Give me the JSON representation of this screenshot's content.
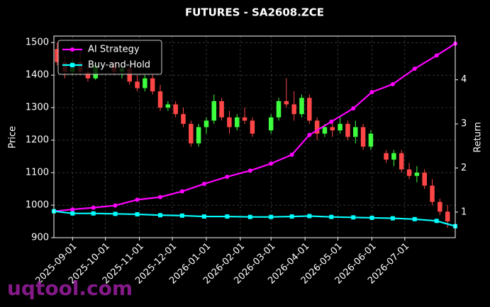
{
  "chart_data": {
    "type": "candlestick",
    "title": "FUTURES - SA2608.ZCE",
    "ylabel": "Price",
    "y2label": "Return",
    "watermark": "uqtool.com",
    "xlim": [
      "2025-08-15",
      "2026-08-16"
    ],
    "xticks": [
      "2025-09-01",
      "2025-10-01",
      "2025-11-01",
      "2025-12-01",
      "2026-01-01",
      "2026-02-01",
      "2026-03-01",
      "2026-04-01",
      "2026-05-01",
      "2026-06-01",
      "2026-07-01"
    ],
    "ylim": [
      900,
      1520
    ],
    "yticks": [
      900,
      1000,
      1100,
      1200,
      1300,
      1400,
      1500
    ],
    "y2lim": [
      0.42,
      4.99
    ],
    "y2ticks": [
      1,
      2,
      3,
      4
    ],
    "grid": true,
    "legend": "upper left",
    "up_color": "#3dff3d",
    "down_color": "#ff4646",
    "x": [
      "2025-08-18",
      "2025-08-25",
      "2025-09-01",
      "2025-09-08",
      "2025-09-15",
      "2025-09-22",
      "2025-10-09",
      "2025-10-16",
      "2025-10-23",
      "2025-10-30",
      "2025-11-06",
      "2025-11-13",
      "2025-11-20",
      "2025-11-27",
      "2025-12-04",
      "2025-12-11",
      "2025-12-18",
      "2025-12-25",
      "2026-01-01",
      "2026-01-08",
      "2026-01-15",
      "2026-01-22",
      "2026-01-29",
      "2026-02-05",
      "2026-02-12",
      "2026-03-01",
      "2026-03-08",
      "2026-03-15",
      "2026-03-22",
      "2026-03-29",
      "2026-04-05",
      "2026-04-12",
      "2026-04-19",
      "2026-04-26",
      "2026-05-03",
      "2026-05-10",
      "2026-05-17",
      "2026-05-24",
      "2026-05-31",
      "2026-06-14",
      "2026-06-21",
      "2026-06-28",
      "2026-07-05",
      "2026-07-12",
      "2026-07-19",
      "2026-07-26",
      "2026-08-02",
      "2026-08-09"
    ],
    "open": [
      1480,
      1440,
      1410,
      1440,
      1410,
      1390,
      1430,
      1410,
      1420,
      1380,
      1360,
      1390,
      1350,
      1300,
      1310,
      1280,
      1250,
      1190,
      1240,
      1260,
      1320,
      1270,
      1240,
      1270,
      1260,
      1230,
      1270,
      1320,
      1310,
      1280,
      1330,
      1260,
      1220,
      1240,
      1230,
      1250,
      1210,
      1240,
      1180,
      1160,
      1140,
      1160,
      1110,
      1090,
      1100,
      1060,
      1010,
      980
    ],
    "high": [
      1500,
      1460,
      1450,
      1470,
      1430,
      1440,
      1450,
      1440,
      1430,
      1400,
      1400,
      1400,
      1370,
      1320,
      1320,
      1300,
      1260,
      1250,
      1270,
      1340,
      1330,
      1290,
      1280,
      1300,
      1270,
      1280,
      1330,
      1390,
      1350,
      1340,
      1340,
      1270,
      1250,
      1260,
      1270,
      1260,
      1260,
      1250,
      1230,
      1170,
      1170,
      1170,
      1130,
      1120,
      1110,
      1080,
      1020,
      1000
    ],
    "low": [
      1430,
      1390,
      1400,
      1400,
      1380,
      1385,
      1400,
      1390,
      1370,
      1350,
      1350,
      1340,
      1290,
      1290,
      1270,
      1240,
      1180,
      1180,
      1220,
      1250,
      1260,
      1220,
      1230,
      1250,
      1210,
      1220,
      1260,
      1300,
      1260,
      1270,
      1250,
      1200,
      1210,
      1210,
      1220,
      1200,
      1190,
      1170,
      1170,
      1130,
      1120,
      1100,
      1080,
      1070,
      1050,
      1000,
      970,
      930
    ],
    "close": [
      1440,
      1410,
      1440,
      1410,
      1390,
      1430,
      1410,
      1420,
      1380,
      1360,
      1390,
      1350,
      1300,
      1310,
      1280,
      1250,
      1190,
      1240,
      1260,
      1320,
      1270,
      1240,
      1270,
      1260,
      1220,
      1270,
      1320,
      1310,
      1280,
      1330,
      1260,
      1220,
      1240,
      1230,
      1250,
      1210,
      1240,
      1180,
      1220,
      1140,
      1160,
      1110,
      1090,
      1100,
      1060,
      1010,
      980,
      950
    ],
    "series": [
      {
        "name": "AI Strategy",
        "color": "#ff00ff",
        "axis": "y2",
        "marker": "circle",
        "x": [
          "2025-08-15",
          "2025-09-01",
          "2025-09-20",
          "2025-10-10",
          "2025-10-30",
          "2025-11-20",
          "2025-12-10",
          "2025-12-30",
          "2026-01-20",
          "2026-02-10",
          "2026-03-01",
          "2026-03-20",
          "2026-04-05",
          "2026-04-25",
          "2026-05-15",
          "2026-06-01",
          "2026-06-20",
          "2026-07-10",
          "2026-07-30",
          "2026-08-16"
        ],
        "values": [
          1.02,
          1.06,
          1.1,
          1.15,
          1.28,
          1.34,
          1.47,
          1.64,
          1.8,
          1.94,
          2.1,
          2.3,
          2.75,
          3.05,
          3.35,
          3.72,
          3.9,
          4.25,
          4.55,
          4.82
        ]
      },
      {
        "name": "Buy-and-Hold",
        "color": "#00ffff",
        "axis": "y2",
        "marker": "square",
        "x": [
          "2025-08-15",
          "2025-09-01",
          "2025-09-20",
          "2025-10-10",
          "2025-10-30",
          "2025-11-20",
          "2025-12-10",
          "2025-12-30",
          "2026-01-20",
          "2026-02-10",
          "2026-03-01",
          "2026-03-20",
          "2026-04-05",
          "2026-04-25",
          "2026-05-15",
          "2026-06-01",
          "2026-06-20",
          "2026-07-10",
          "2026-07-30",
          "2026-08-16"
        ],
        "values": [
          1.02,
          0.97,
          0.97,
          0.96,
          0.95,
          0.93,
          0.92,
          0.9,
          0.9,
          0.89,
          0.89,
          0.9,
          0.91,
          0.89,
          0.88,
          0.87,
          0.86,
          0.84,
          0.8,
          0.68
        ]
      }
    ]
  }
}
